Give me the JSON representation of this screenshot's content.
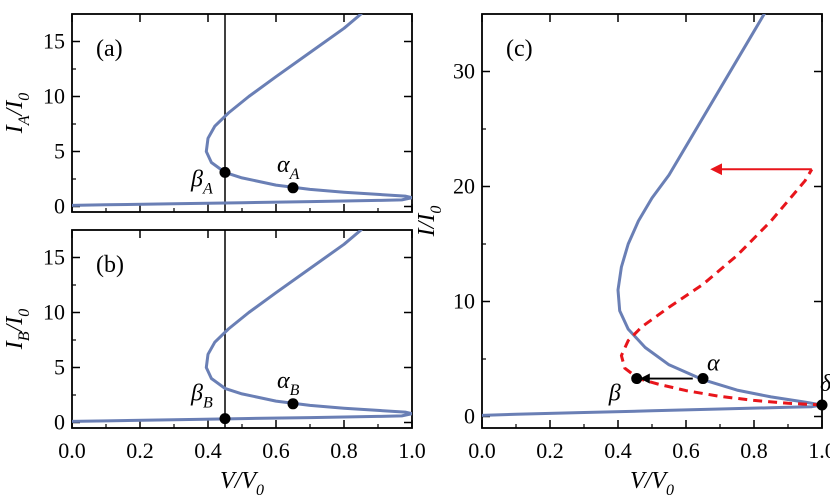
{
  "chart_data": [
    {
      "panel": "(a)",
      "type": "line",
      "ylabel": "I_A/I_0",
      "ylabel_main": "I",
      "ylabel_sub": "A",
      "ylabel_slash": "/I",
      "ylabel_sub0": "0",
      "xlim": [
        0,
        1.0
      ],
      "ylim": [
        -0.5,
        17.5
      ],
      "yticks": [
        0,
        5,
        10,
        15
      ],
      "vline_x": 0.45,
      "series": [
        {
          "color": "#6a7fb5",
          "points": [
            [
              0,
              0.1
            ],
            [
              0.1,
              0.15
            ],
            [
              0.3,
              0.25
            ],
            [
              0.5,
              0.35
            ],
            [
              0.7,
              0.45
            ],
            [
              0.9,
              0.55
            ],
            [
              0.97,
              0.6
            ],
            [
              1.0,
              0.8
            ],
            [
              0.98,
              0.95
            ],
            [
              0.9,
              1.1
            ],
            [
              0.8,
              1.3
            ],
            [
              0.7,
              1.55
            ],
            [
              0.6,
              1.95
            ],
            [
              0.5,
              2.6
            ],
            [
              0.45,
              3.1
            ],
            [
              0.41,
              4.0
            ],
            [
              0.395,
              5.0
            ],
            [
              0.4,
              6.2
            ],
            [
              0.42,
              7.3
            ],
            [
              0.46,
              8.5
            ],
            [
              0.52,
              10.0
            ],
            [
              0.6,
              11.8
            ],
            [
              0.7,
              14.0
            ],
            [
              0.8,
              16.2
            ],
            [
              0.85,
              17.5
            ]
          ]
        }
      ],
      "points": [
        {
          "x": 0.45,
          "y": 3.1,
          "label": "β",
          "sub": "A"
        },
        {
          "x": 0.65,
          "y": 1.7,
          "label": "α",
          "sub": "A"
        }
      ]
    },
    {
      "panel": "(b)",
      "type": "line",
      "ylabel": "I_B/I_0",
      "ylabel_main": "I",
      "ylabel_sub": "B",
      "ylabel_slash": "/I",
      "ylabel_sub0": "0",
      "xlim": [
        0,
        1.0
      ],
      "ylim": [
        -0.5,
        17.5
      ],
      "yticks": [
        0,
        5,
        10,
        15
      ],
      "xticks": [
        0.0,
        0.2,
        0.4,
        0.6,
        0.8,
        1.0
      ],
      "xtick_labels": [
        "0.0",
        "0.2",
        "0.4",
        "0.6",
        "0.8",
        "1.0"
      ],
      "xlabel": "V/V_0",
      "xlabel_main": "V/V",
      "xlabel_sub": "0",
      "vline_x": 0.45,
      "series": [
        {
          "color": "#6a7fb5",
          "points": [
            [
              0,
              0.1
            ],
            [
              0.1,
              0.15
            ],
            [
              0.3,
              0.25
            ],
            [
              0.5,
              0.35
            ],
            [
              0.7,
              0.45
            ],
            [
              0.9,
              0.55
            ],
            [
              0.97,
              0.6
            ],
            [
              1.0,
              0.8
            ],
            [
              0.98,
              0.95
            ],
            [
              0.9,
              1.1
            ],
            [
              0.8,
              1.3
            ],
            [
              0.7,
              1.55
            ],
            [
              0.6,
              1.95
            ],
            [
              0.5,
              2.6
            ],
            [
              0.45,
              3.1
            ],
            [
              0.41,
              4.0
            ],
            [
              0.395,
              5.0
            ],
            [
              0.4,
              6.2
            ],
            [
              0.42,
              7.3
            ],
            [
              0.46,
              8.5
            ],
            [
              0.52,
              10.0
            ],
            [
              0.6,
              11.8
            ],
            [
              0.7,
              14.0
            ],
            [
              0.8,
              16.2
            ],
            [
              0.85,
              17.5
            ]
          ]
        }
      ],
      "points": [
        {
          "x": 0.45,
          "y": 0.35,
          "label": "β",
          "sub": "B"
        },
        {
          "x": 0.65,
          "y": 1.7,
          "label": "α",
          "sub": "B"
        }
      ]
    },
    {
      "panel": "(c)",
      "type": "line",
      "ylabel": "I/I_0",
      "ylabel_main": "I/I",
      "ylabel_sub0": "0",
      "xlabel": "V/V_0",
      "xlabel_main": "V/V",
      "xlabel_sub": "0",
      "xlim": [
        0,
        1.0
      ],
      "ylim": [
        -1,
        35
      ],
      "yticks": [
        0,
        10,
        20,
        30
      ],
      "xticks": [
        0.0,
        0.2,
        0.4,
        0.6,
        0.8,
        1.0
      ],
      "xtick_labels": [
        "0.0",
        "0.2",
        "0.4",
        "0.6",
        "0.8",
        "1.0"
      ],
      "series": [
        {
          "style": "solid",
          "color": "#6a7fb5",
          "points": [
            [
              0,
              0.1
            ],
            [
              0.1,
              0.2
            ],
            [
              0.3,
              0.35
            ],
            [
              0.5,
              0.5
            ],
            [
              0.7,
              0.65
            ],
            [
              0.9,
              0.8
            ],
            [
              0.97,
              0.85
            ],
            [
              1.0,
              1.0
            ],
            [
              0.95,
              1.25
            ],
            [
              0.85,
              1.7
            ],
            [
              0.75,
              2.3
            ],
            [
              0.65,
              3.2
            ],
            [
              0.55,
              4.5
            ],
            [
              0.48,
              6.0
            ],
            [
              0.43,
              7.6
            ],
            [
              0.405,
              9.2
            ],
            [
              0.4,
              11.0
            ],
            [
              0.41,
              13.0
            ],
            [
              0.43,
              15.0
            ],
            [
              0.46,
              17.0
            ],
            [
              0.5,
              19.0
            ],
            [
              0.55,
              21.0
            ],
            [
              0.62,
              24.5
            ],
            [
              0.7,
              28.5
            ],
            [
              0.78,
              32.5
            ],
            [
              0.83,
              35
            ]
          ]
        },
        {
          "style": "dashed",
          "color": "#e8151b",
          "points": [
            [
              1.0,
              1.0
            ],
            [
              0.9,
              1.15
            ],
            [
              0.8,
              1.4
            ],
            [
              0.7,
              1.75
            ],
            [
              0.6,
              2.25
            ],
            [
              0.52,
              2.8
            ],
            [
              0.46,
              3.3
            ],
            [
              0.42,
              4.2
            ],
            [
              0.41,
              5.3
            ],
            [
              0.43,
              6.6
            ],
            [
              0.47,
              7.8
            ],
            [
              0.55,
              9.5
            ],
            [
              0.65,
              11.5
            ],
            [
              0.75,
              14.0
            ],
            [
              0.85,
              17.0
            ],
            [
              0.95,
              20.5
            ],
            [
              0.97,
              21.5
            ]
          ]
        }
      ],
      "points": [
        {
          "x": 0.455,
          "y": 3.3,
          "label": "β"
        },
        {
          "x": 0.65,
          "y": 3.3,
          "label": "α"
        },
        {
          "x": 1.0,
          "y": 1.0,
          "label": "δ"
        }
      ],
      "arrows": [
        {
          "x1": 0.62,
          "y1": 3.3,
          "x2": 0.47,
          "y2": 3.3,
          "color": "#000000"
        },
        {
          "x1": 0.97,
          "y1": 21.5,
          "x2": 0.68,
          "y2": 21.5,
          "color": "#e8151b"
        }
      ]
    }
  ]
}
